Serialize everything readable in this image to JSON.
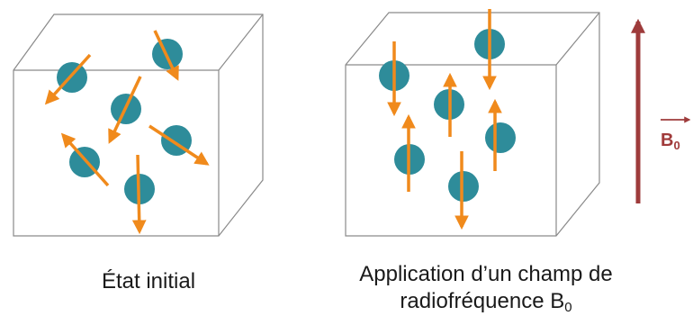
{
  "captions": {
    "left": "État initial",
    "right_line1": "Application d’un champ de",
    "right_line2": "radiofréquence B",
    "right_sub": "0"
  },
  "field_label": {
    "text": "B",
    "sub": "0"
  },
  "colors": {
    "sphere": "#2e8c9a",
    "arrow": "#f08a1c",
    "field_arrow": "#9e3b3b",
    "box_edge": "#8a8a8a"
  }
}
